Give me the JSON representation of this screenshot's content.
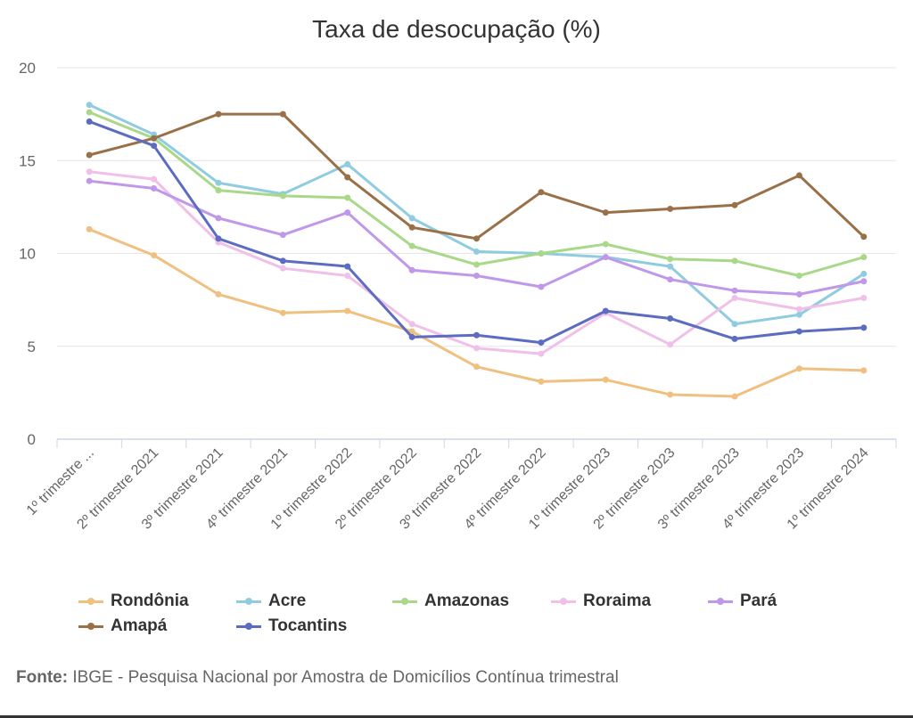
{
  "chart_data": {
    "type": "line",
    "title": "Taxa de desocupação (%)",
    "xlabel": "",
    "ylabel": "",
    "ylim": [
      0,
      20
    ],
    "yticks": [
      "0",
      "5",
      "10",
      "15",
      "20"
    ],
    "grid": true,
    "legend_placement": "bottom",
    "categories": [
      "1º trimestre ...",
      "2º trimestre 2021",
      "3º trimestre 2021",
      "4º trimestre 2021",
      "1º trimestre 2022",
      "2º trimestre 2022",
      "3º trimestre 2022",
      "4º trimestre 2022",
      "1º trimestre 2023",
      "2º trimestre 2023",
      "3º trimestre 2023",
      "4º trimestre 2023",
      "1º trimestre 2024"
    ],
    "series": [
      {
        "name": "Rondônia",
        "color": "#f0c080",
        "values": [
          11.3,
          9.9,
          7.8,
          6.8,
          6.9,
          5.8,
          3.9,
          3.1,
          3.2,
          2.4,
          2.3,
          3.8,
          3.7
        ]
      },
      {
        "name": "Acre",
        "color": "#90cce0",
        "values": [
          18.0,
          16.4,
          13.8,
          13.2,
          14.8,
          11.9,
          10.1,
          10.0,
          9.8,
          9.3,
          6.2,
          6.7,
          8.9
        ]
      },
      {
        "name": "Amazonas",
        "color": "#a8d888",
        "values": [
          17.6,
          16.2,
          13.4,
          13.1,
          13.0,
          10.4,
          9.4,
          10.0,
          10.5,
          9.7,
          9.6,
          8.8,
          9.8
        ]
      },
      {
        "name": "Roraima",
        "color": "#f0c0e8",
        "values": [
          14.4,
          14.0,
          10.6,
          9.2,
          8.8,
          6.2,
          4.9,
          4.6,
          6.8,
          5.1,
          7.6,
          7.0,
          7.6
        ]
      },
      {
        "name": "Pará",
        "color": "#c098ea",
        "values": [
          13.9,
          13.5,
          11.9,
          11.0,
          12.2,
          9.1,
          8.8,
          8.2,
          9.8,
          8.6,
          8.0,
          7.8,
          8.5
        ]
      },
      {
        "name": "Amapá",
        "color": "#9a7048",
        "values": [
          15.3,
          16.2,
          17.5,
          17.5,
          14.1,
          11.4,
          10.8,
          13.3,
          12.2,
          12.4,
          12.6,
          14.2,
          10.9
        ]
      },
      {
        "name": "Tocantins",
        "color": "#5c6cc0",
        "values": [
          17.1,
          15.8,
          10.8,
          9.6,
          9.3,
          5.5,
          5.6,
          5.2,
          6.9,
          6.5,
          5.4,
          5.8,
          6.0
        ]
      }
    ]
  },
  "source": {
    "label": "Fonte:",
    "text": " IBGE - Pesquisa Nacional por Amostra de Domicílios Contínua trimestral"
  }
}
